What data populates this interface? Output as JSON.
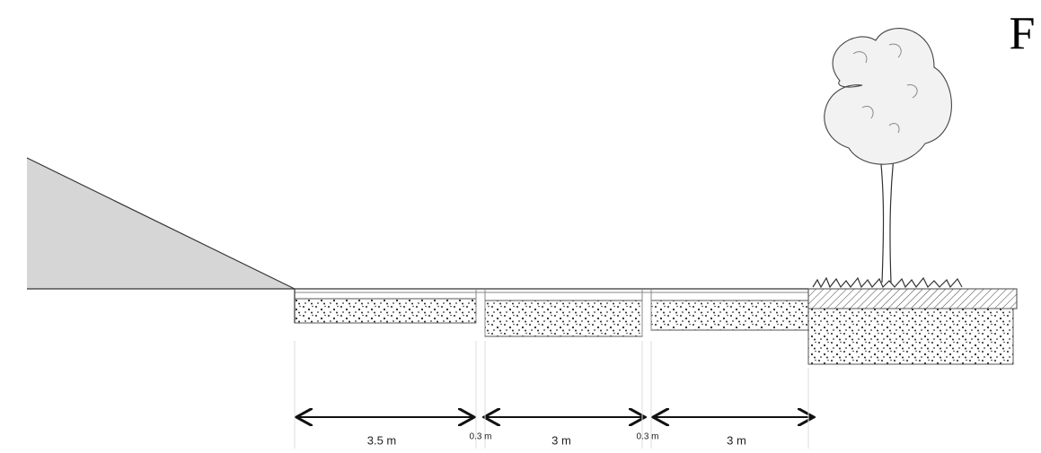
{
  "label": "F",
  "dimensions": [
    "3.5 m",
    "0.3 m",
    "3 m",
    "0.3 m",
    "3 m"
  ]
}
